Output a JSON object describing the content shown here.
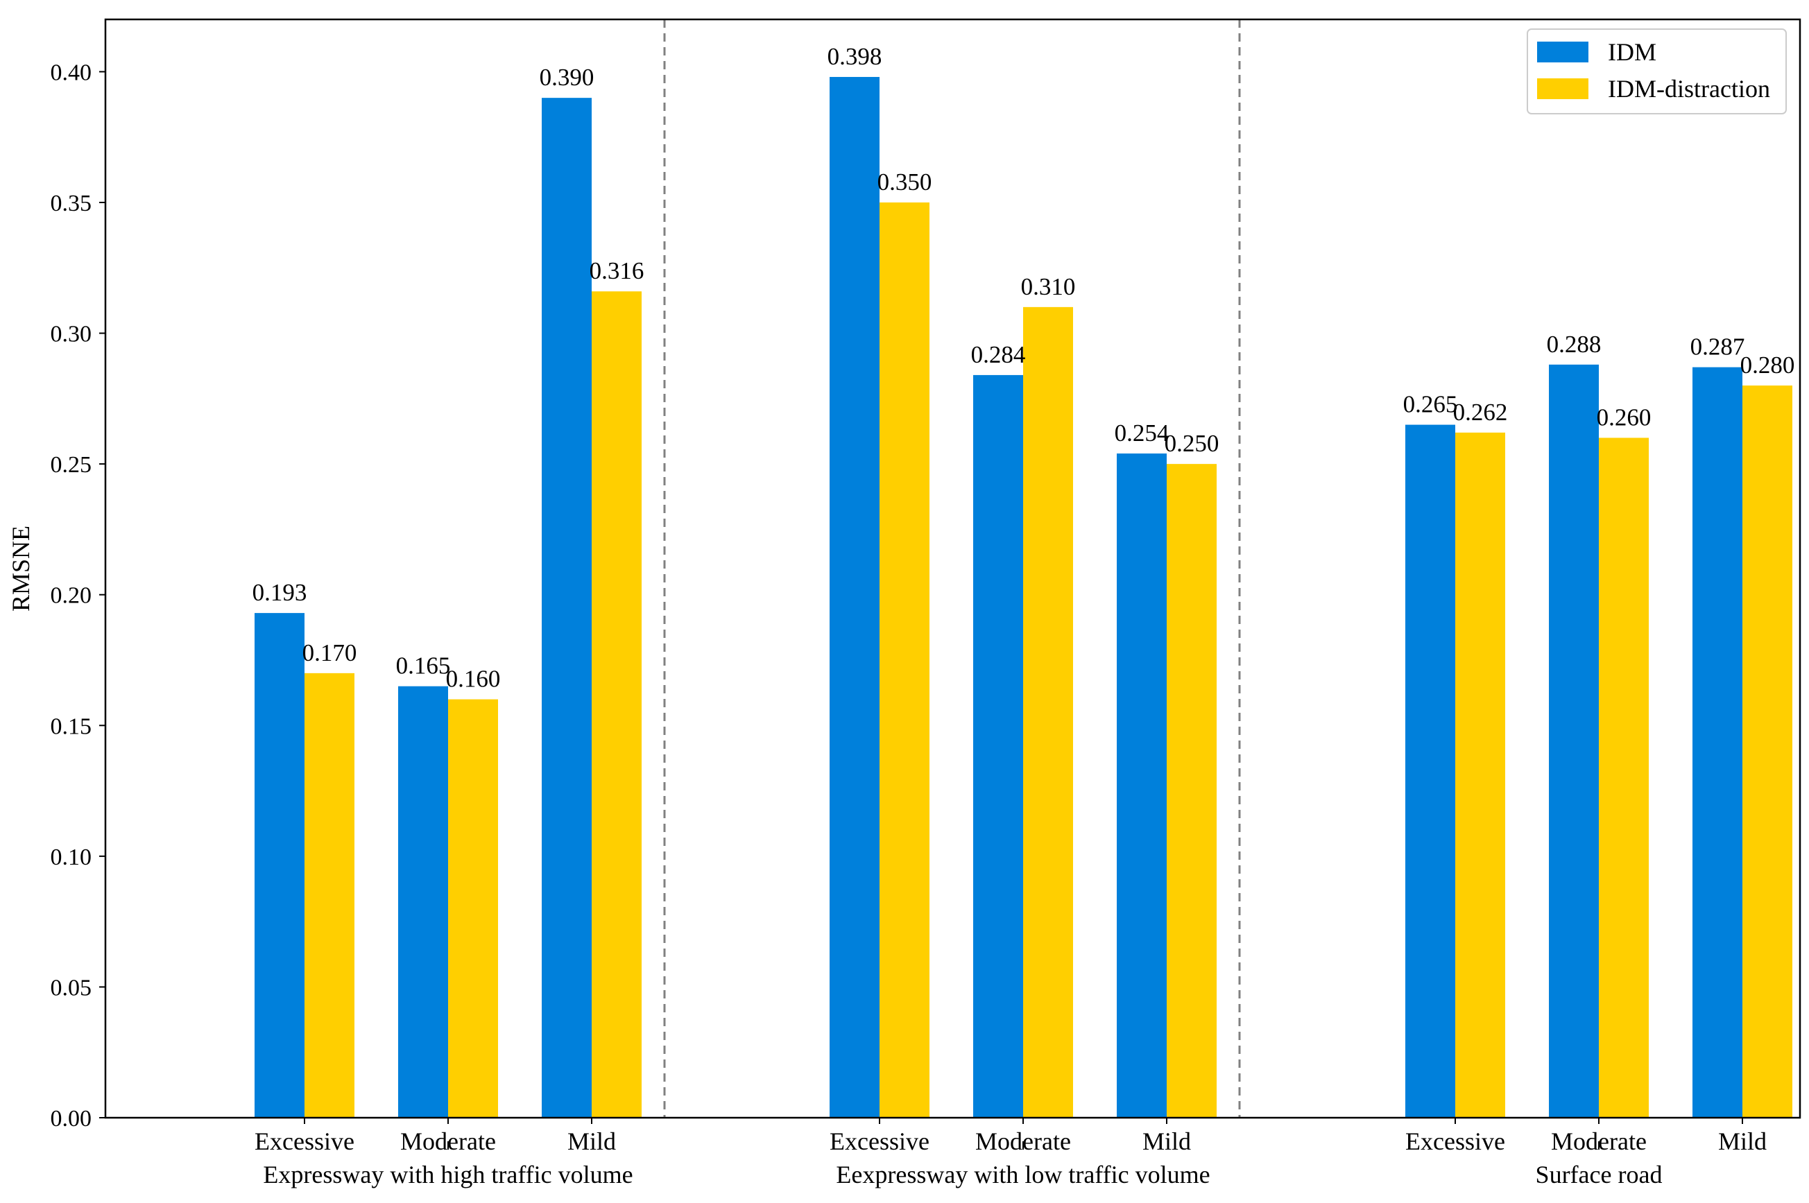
{
  "chart_data": {
    "type": "bar",
    "ylabel": "RMSNE",
    "ylim": [
      0,
      0.42
    ],
    "yticks": [
      "0.00",
      "0.05",
      "0.10",
      "0.15",
      "0.20",
      "0.25",
      "0.30",
      "0.35",
      "0.40"
    ],
    "ytick_values": [
      0,
      0.05,
      0.1,
      0.15,
      0.2,
      0.25,
      0.3,
      0.35,
      0.4
    ],
    "legend_position": "top-right",
    "series_meta": [
      {
        "name": "IDM",
        "color": "#0080DB"
      },
      {
        "name": "IDM-distraction",
        "color": "#FFCF00"
      }
    ],
    "groups": [
      {
        "name": "Expressway with high traffic volume",
        "categories": [
          "Excessive",
          "Moderate",
          "Mild"
        ],
        "series": [
          {
            "name": "IDM",
            "values": [
              0.193,
              0.165,
              0.39
            ],
            "labels": [
              "0.193",
              "0.165",
              "0.390"
            ]
          },
          {
            "name": "IDM-distraction",
            "values": [
              0.17,
              0.16,
              0.316
            ],
            "labels": [
              "0.170",
              "0.160",
              "0.316"
            ]
          }
        ]
      },
      {
        "name": "Eexpressway with low traffic volume",
        "categories": [
          "Excessive",
          "Moderate",
          "Mild"
        ],
        "series": [
          {
            "name": "IDM",
            "values": [
              0.398,
              0.284,
              0.254
            ],
            "labels": [
              "0.398",
              "0.284",
              "0.254"
            ]
          },
          {
            "name": "IDM-distraction",
            "values": [
              0.35,
              0.31,
              0.25
            ],
            "labels": [
              "0.350",
              "0.310",
              "0.250"
            ]
          }
        ]
      },
      {
        "name": "Surface road",
        "categories": [
          "Excessive",
          "Moderate",
          "Mild"
        ],
        "series": [
          {
            "name": "IDM",
            "values": [
              0.265,
              0.288,
              0.287
            ],
            "labels": [
              "0.265",
              "0.288",
              "0.287"
            ]
          },
          {
            "name": "IDM-distraction",
            "values": [
              0.262,
              0.26,
              0.28
            ],
            "labels": [
              "0.262",
              "0.260",
              "0.280"
            ]
          }
        ]
      }
    ]
  }
}
